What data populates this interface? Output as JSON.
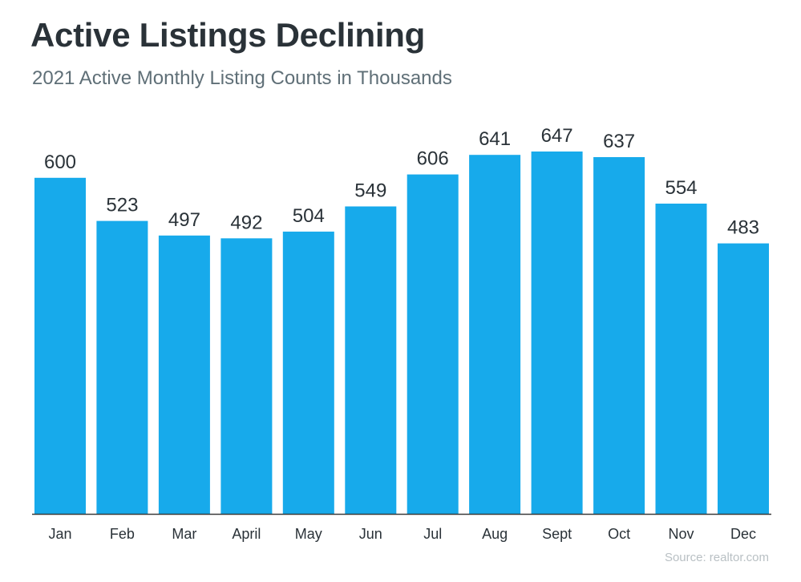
{
  "title": "Active Listings Declining",
  "subtitle": "2021 Active Monthly Listing Counts in Thousands",
  "source": "Source: realtor.com",
  "colors": {
    "bar": "#17aaeb",
    "axis": "#3a3a3a",
    "text": "#2a3238"
  },
  "chart_data": {
    "type": "bar",
    "categories": [
      "Jan",
      "Feb",
      "Mar",
      "April",
      "May",
      "Jun",
      "Jul",
      "Aug",
      "Sept",
      "Oct",
      "Nov",
      "Dec"
    ],
    "values": [
      600,
      523,
      497,
      492,
      504,
      549,
      606,
      641,
      647,
      637,
      554,
      483
    ],
    "title": "Active Listings Declining",
    "subtitle": "2021 Active Monthly Listing Counts in Thousands",
    "xlabel": "",
    "ylabel": "",
    "ylim": [
      0,
      647
    ],
    "grid": false,
    "legend": "none",
    "data_labels": true
  }
}
